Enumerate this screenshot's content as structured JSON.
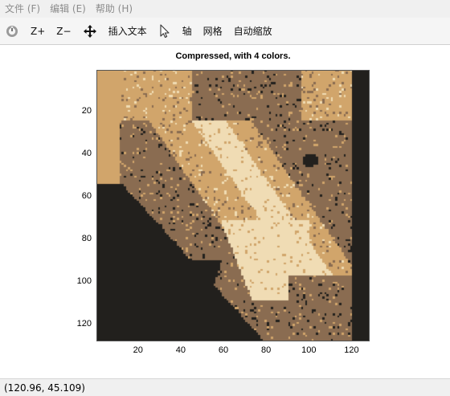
{
  "menubar": {
    "items": [
      "文件 (F)",
      "编辑 (E)",
      "帮助 (H)"
    ]
  },
  "toolbar": {
    "zoom_in": "Z+",
    "zoom_out": "Z−",
    "insert_text": "插入文本",
    "axes": "轴",
    "grid": "网格",
    "autoscale": "自动缩放"
  },
  "figure": {
    "title": "Compressed, with 4 colors.",
    "yticks": [
      "20",
      "40",
      "60",
      "80",
      "100",
      "120"
    ],
    "xticks": [
      "20",
      "40",
      "60",
      "80",
      "100",
      "120"
    ],
    "xlim": [
      0.5,
      128.5
    ],
    "ylim": [
      0.5,
      128.5
    ],
    "palette": [
      "#22201d",
      "#8a6c51",
      "#d1a56b",
      "#f0dcb4"
    ]
  },
  "status": {
    "coords": "(120.96, 45.109)"
  }
}
